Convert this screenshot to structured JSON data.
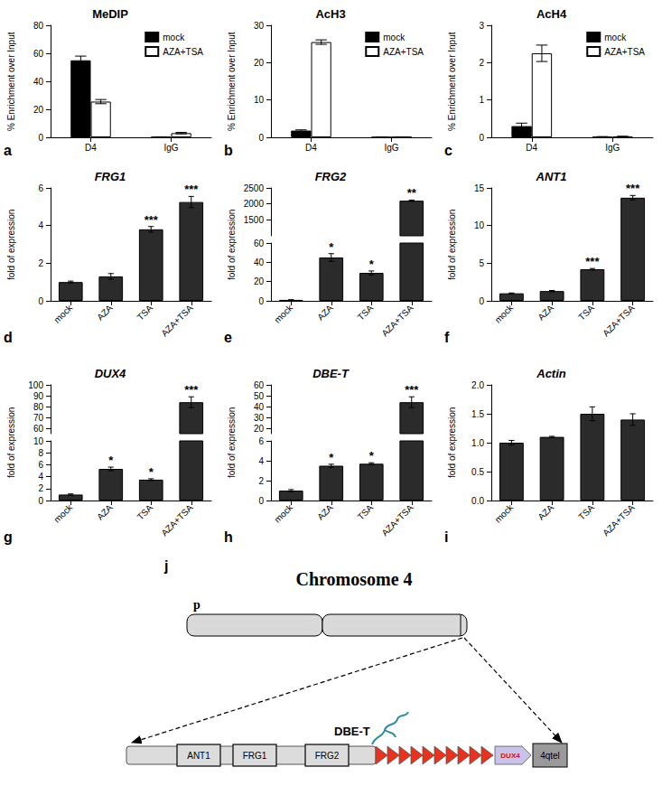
{
  "chart_data": [
    {
      "panel": "a",
      "type": "bar",
      "title": "MeDIP",
      "y_label": "% Enrichment over Input",
      "categories": [
        "D4",
        "IgG"
      ],
      "series": [
        {
          "name": "mock",
          "color": "#000000",
          "values": [
            55,
            0.3
          ],
          "errors": [
            3,
            0.05
          ]
        },
        {
          "name": "AZA+TSA",
          "color": "#ffffff",
          "values": [
            25.5,
            3
          ],
          "errors": [
            1.5,
            0.5
          ]
        }
      ],
      "ylim": [
        0,
        80
      ],
      "yticks": [
        0,
        20,
        40,
        60,
        80
      ],
      "legend": "upper right",
      "grid": false
    },
    {
      "panel": "b",
      "type": "bar",
      "title": "AcH3",
      "y_label": "% Enrichment over Input",
      "categories": [
        "D4",
        "IgG"
      ],
      "series": [
        {
          "name": "mock",
          "color": "#000000",
          "values": [
            1.8,
            0.05
          ],
          "errors": [
            0.2,
            0.02
          ]
        },
        {
          "name": "AZA+TSA",
          "color": "#ffffff",
          "values": [
            25.5,
            0.1
          ],
          "errors": [
            0.6,
            0.02
          ]
        }
      ],
      "ylim": [
        0,
        30
      ],
      "yticks": [
        0,
        10,
        20,
        30
      ],
      "legend": "upper right",
      "grid": false
    },
    {
      "panel": "c",
      "type": "bar",
      "title": "AcH4",
      "y_label": "% Enrichment over Input",
      "categories": [
        "D4",
        "IgG"
      ],
      "series": [
        {
          "name": "mock",
          "color": "#000000",
          "values": [
            0.3,
            0.01
          ],
          "errors": [
            0.08,
            0.01
          ]
        },
        {
          "name": "AZA+TSA",
          "color": "#ffffff",
          "values": [
            2.25,
            0.02
          ],
          "errors": [
            0.22,
            0.01
          ]
        }
      ],
      "ylim": [
        0,
        3
      ],
      "yticks": [
        0,
        1,
        2,
        3
      ],
      "legend": "upper right",
      "grid": false
    },
    {
      "panel": "d",
      "type": "bar",
      "title": "FRG1",
      "y_label": "fold of expression",
      "categories": [
        "mock",
        "AZA",
        "TSA",
        "AZA+TSA"
      ],
      "values": [
        1,
        1.3,
        3.8,
        5.25
      ],
      "errors": [
        0.05,
        0.15,
        0.15,
        0.3
      ],
      "significance": [
        null,
        null,
        "***",
        "***"
      ],
      "color": "#2b2b2b",
      "ylim": [
        0,
        6
      ],
      "yticks": [
        0,
        2,
        4,
        6
      ],
      "grid": false
    },
    {
      "panel": "e",
      "type": "bar",
      "title": "FRG2",
      "y_label": "fold of expression",
      "categories": [
        "mock",
        "AZA",
        "TSA",
        "AZA+TSA"
      ],
      "values": [
        1,
        45,
        29,
        2100
      ],
      "errors": [
        0.1,
        4,
        2,
        20
      ],
      "significance": [
        null,
        "*",
        "*",
        "**"
      ],
      "color": "#2b2b2b",
      "ylim": [
        0,
        2500
      ],
      "ybreak": [
        60,
        1000
      ],
      "yticks": [
        0,
        20,
        40,
        60,
        1500,
        2000,
        2500
      ],
      "grid": false
    },
    {
      "panel": "f",
      "type": "bar",
      "title": "ANT1",
      "y_label": "fold of expression",
      "categories": [
        "mock",
        "AZA",
        "TSA",
        "AZA+TSA"
      ],
      "values": [
        1,
        1.3,
        4.2,
        13.7
      ],
      "errors": [
        0.05,
        0.08,
        0.1,
        0.3
      ],
      "significance": [
        null,
        null,
        "***",
        "***"
      ],
      "color": "#2b2b2b",
      "ylim": [
        0,
        15
      ],
      "yticks": [
        0,
        5,
        10,
        15
      ],
      "grid": false
    },
    {
      "panel": "g",
      "type": "bar",
      "title": "DUX4",
      "y_label": "fold of expression",
      "categories": [
        "mock",
        "AZA",
        "TSA",
        "AZA+TSA"
      ],
      "values": [
        1,
        5.3,
        3.5,
        84
      ],
      "errors": [
        0.1,
        0.3,
        0.15,
        5
      ],
      "significance": [
        null,
        "*",
        "*",
        "***"
      ],
      "color": "#2b2b2b",
      "ylim": [
        0,
        100
      ],
      "ybreak": [
        10,
        55
      ],
      "yticks": [
        0,
        2,
        4,
        6,
        8,
        10,
        60,
        70,
        80,
        90,
        100
      ],
      "grid": false
    },
    {
      "panel": "h",
      "type": "bar",
      "title": "DBE-T",
      "y_label": "fold of expression",
      "categories": [
        "mock",
        "AZA",
        "TSA",
        "AZA+TSA"
      ],
      "values": [
        1,
        3.5,
        3.7,
        44
      ],
      "errors": [
        0.1,
        0.15,
        0.1,
        5
      ],
      "significance": [
        null,
        "*",
        "*",
        "***"
      ],
      "color": "#2b2b2b",
      "ylim": [
        0,
        60
      ],
      "ybreak": [
        6,
        15
      ],
      "yticks": [
        0,
        2,
        4,
        6,
        20,
        30,
        40,
        50,
        60
      ],
      "grid": false
    },
    {
      "panel": "i",
      "type": "bar",
      "title": "Actin",
      "y_label": "fold of expression",
      "categories": [
        "mock",
        "AZA",
        "TSA",
        "AZA+TSA"
      ],
      "values": [
        1,
        1.1,
        1.5,
        1.4
      ],
      "errors": [
        0.04,
        0.01,
        0.12,
        0.1
      ],
      "color": "#2b2b2b",
      "ylim": [
        0,
        2
      ],
      "yticks": [
        {
          "value": 0,
          "label": "0.0"
        },
        {
          "value": 0.5,
          "label": "0.5"
        },
        {
          "value": 1,
          "label": "1.0"
        },
        {
          "value": 1.5,
          "label": "1.5"
        },
        {
          "value": 2,
          "label": "2.0"
        }
      ],
      "grid": false
    }
  ],
  "diagram": {
    "panel": "j",
    "title": "Chromosome 4",
    "arm": "p",
    "genes": [
      "ANT1",
      "FRG1",
      "FRG2"
    ],
    "transcript": "DBE-T",
    "repeat_units": 10,
    "end_gene": "DUX4",
    "telomere": "4qtel"
  }
}
